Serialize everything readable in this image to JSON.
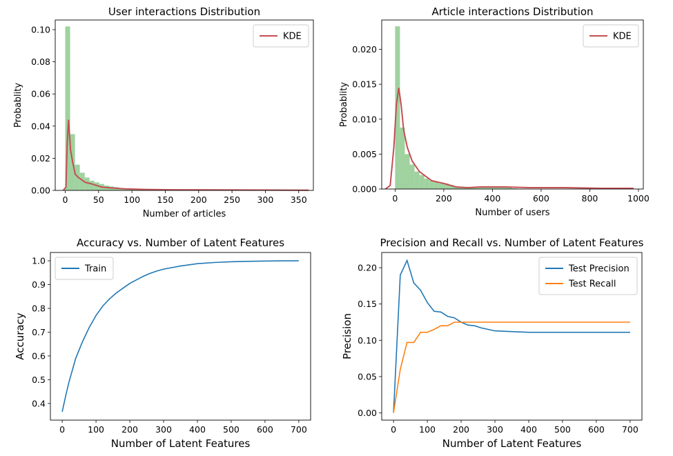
{
  "chart_data": [
    {
      "type": "histogram",
      "title": "User interactions Distribution",
      "xlabel": "Number of articles",
      "ylabel": "Probablity",
      "xlim": [
        -15,
        372
      ],
      "ylim": [
        0,
        0.106
      ],
      "xticks": [
        0,
        50,
        100,
        150,
        200,
        250,
        300,
        350
      ],
      "yticks": [
        "0.00",
        "0.02",
        "0.04",
        "0.06",
        "0.08",
        "0.10"
      ],
      "legend": [
        "KDE"
      ],
      "legend_position": "top-right",
      "hist_bin_width": 7.3,
      "hist_edges_start": 0,
      "hist_values": [
        0.102,
        0.035,
        0.016,
        0.011,
        0.008,
        0.006,
        0.005,
        0.004,
        0.003,
        0.0025,
        0.002,
        0.0015,
        0.0012,
        0.001,
        0.0008,
        0.0006,
        0.0005,
        0.0005,
        0.0004,
        0.0003,
        0.0003,
        0.0002,
        0.0002,
        0.0002
      ],
      "kde": {
        "name": "KDE",
        "x": [
          -3,
          1,
          3,
          5,
          8,
          11,
          15,
          20,
          30,
          40,
          55,
          70,
          90,
          120,
          160,
          220,
          300,
          365
        ],
        "y": [
          0.0,
          0.002,
          0.03,
          0.044,
          0.025,
          0.018,
          0.01,
          0.008,
          0.005,
          0.004,
          0.002,
          0.0015,
          0.001,
          0.0006,
          0.0004,
          0.0003,
          0.0002,
          0.0001
        ]
      }
    },
    {
      "type": "histogram",
      "title": "Article interactions Distribution",
      "xlabel": "Number of users",
      "ylabel": "Probablity",
      "xlim": [
        -55,
        1020
      ],
      "ylim": [
        0,
        0.0242
      ],
      "xticks": [
        0,
        200,
        400,
        600,
        800,
        1000
      ],
      "yticks": [
        "0.000",
        "0.005",
        "0.010",
        "0.015",
        "0.020"
      ],
      "legend": [
        "KDE"
      ],
      "legend_position": "top-right",
      "hist_bin_width": 20,
      "hist_edges_start": 0,
      "hist_values": [
        0.0233,
        0.0088,
        0.005,
        0.0035,
        0.0025,
        0.002,
        0.0015,
        0.0012,
        0.001,
        0.0008,
        0.0008,
        0.0006,
        0.0004,
        0.0003,
        0.0003,
        0.0003,
        0.0003,
        0.0002,
        0.0002,
        0.0002,
        0.0002,
        0.0002,
        0.0002,
        0.0002,
        0.0001
      ],
      "kde": {
        "name": "KDE",
        "x": [
          -40,
          -20,
          -5,
          5,
          15,
          25,
          35,
          50,
          70,
          100,
          150,
          200,
          250,
          300,
          350,
          450,
          550,
          700,
          850,
          950,
          980
        ],
        "y": [
          0.0,
          0.0005,
          0.006,
          0.012,
          0.0145,
          0.012,
          0.0085,
          0.006,
          0.004,
          0.0025,
          0.0012,
          0.0008,
          0.0003,
          0.0002,
          0.0003,
          0.0003,
          0.0002,
          0.0002,
          0.0001,
          0.0001,
          0.0001
        ]
      }
    },
    {
      "type": "line",
      "title": "Accuracy vs. Number of Latent Features",
      "xlabel": "Number of Latent Features",
      "ylabel": "Accuracy",
      "xlim": [
        -35,
        735
      ],
      "ylim": [
        0.33,
        1.035
      ],
      "xticks": [
        0,
        100,
        200,
        300,
        400,
        500,
        600,
        700
      ],
      "yticks": [
        "0.4",
        "0.5",
        "0.6",
        "0.7",
        "0.8",
        "0.9",
        "1.0"
      ],
      "legend_position": "top-left",
      "series": [
        {
          "name": "Train",
          "color": "#1f77b4",
          "x": [
            0,
            10,
            20,
            30,
            40,
            50,
            60,
            70,
            80,
            90,
            100,
            120,
            140,
            160,
            180,
            200,
            220,
            240,
            260,
            280,
            300,
            350,
            400,
            450,
            500,
            550,
            600,
            650,
            700
          ],
          "y": [
            0.365,
            0.43,
            0.49,
            0.54,
            0.59,
            0.625,
            0.66,
            0.69,
            0.72,
            0.745,
            0.77,
            0.81,
            0.84,
            0.865,
            0.885,
            0.905,
            0.92,
            0.935,
            0.947,
            0.957,
            0.965,
            0.978,
            0.988,
            0.993,
            0.996,
            0.998,
            0.999,
            1.0,
            1.0
          ]
        }
      ]
    },
    {
      "type": "line",
      "title": "Precision and Recall vs. Number of Latent Features",
      "xlabel": "Number of Latent Features",
      "ylabel": "Precision",
      "xlim": [
        -35,
        735
      ],
      "ylim": [
        -0.01,
        0.221
      ],
      "xticks": [
        0,
        100,
        200,
        300,
        400,
        500,
        600,
        700
      ],
      "yticks": [
        "0.00",
        "0.05",
        "0.10",
        "0.15",
        "0.20"
      ],
      "legend_position": "top-right",
      "series": [
        {
          "name": "Test Precision",
          "color": "#1f77b4",
          "x": [
            0,
            20,
            40,
            60,
            80,
            100,
            120,
            140,
            160,
            180,
            200,
            220,
            240,
            260,
            280,
            300,
            350,
            400,
            450,
            500,
            550,
            600,
            650,
            700
          ],
          "y": [
            0.0,
            0.19,
            0.21,
            0.179,
            0.169,
            0.152,
            0.14,
            0.139,
            0.133,
            0.131,
            0.125,
            0.121,
            0.12,
            0.117,
            0.115,
            0.113,
            0.112,
            0.111,
            0.111,
            0.111,
            0.111,
            0.111,
            0.111,
            0.111
          ]
        },
        {
          "name": "Test Recall",
          "color": "#ff7f0e",
          "x": [
            0,
            20,
            40,
            60,
            80,
            100,
            120,
            140,
            160,
            180,
            200,
            250,
            300,
            400,
            500,
            600,
            700
          ],
          "y": [
            0.0,
            0.06,
            0.097,
            0.097,
            0.111,
            0.111,
            0.115,
            0.12,
            0.12,
            0.125,
            0.125,
            0.125,
            0.125,
            0.125,
            0.125,
            0.125,
            0.125
          ]
        }
      ]
    }
  ]
}
